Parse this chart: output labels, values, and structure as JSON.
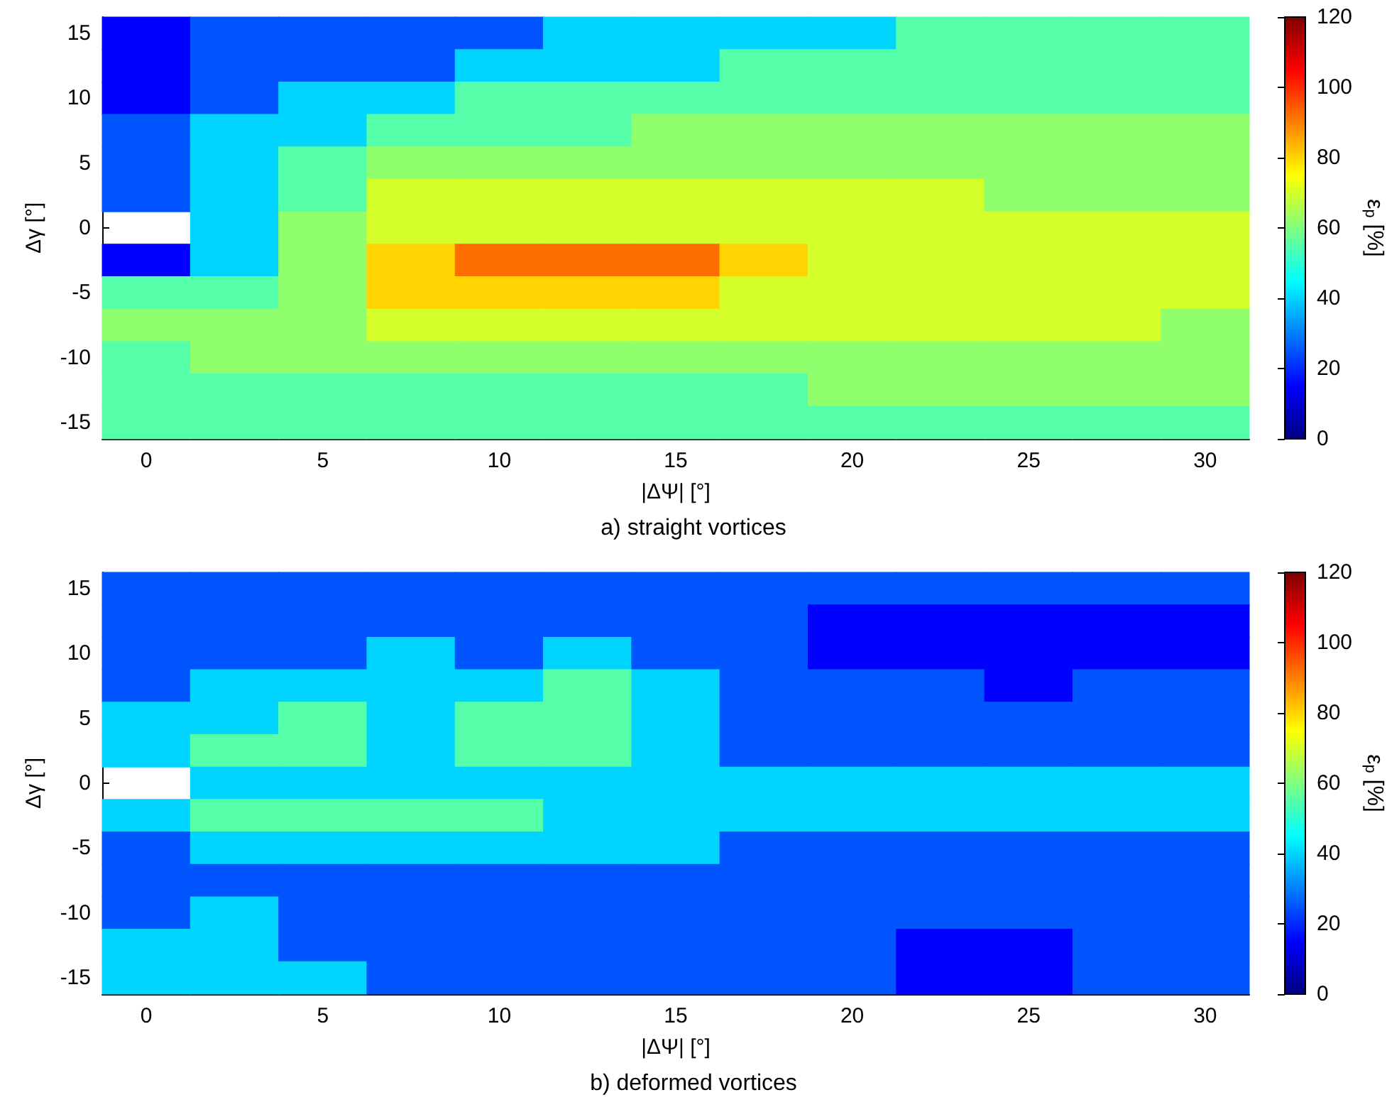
{
  "chart_data": [
    {
      "type": "heatmap",
      "xlabel": "|ΔΨ| [°]",
      "ylabel": "Δγ [°]",
      "clabel": "ε$_{p}$ [%]",
      "annotations": [
        "a) straight vortices"
      ],
      "clim": [
        0,
        120
      ],
      "cticks": [
        0,
        20,
        40,
        60,
        80,
        100,
        120
      ],
      "categories": [
        "0",
        null,
        "5",
        null,
        "10",
        null,
        "15",
        null,
        "20",
        null,
        "25",
        null,
        "30"
      ],
      "y_categories": [
        "15",
        null,
        "10",
        null,
        "5",
        null,
        "0",
        null,
        "-5",
        null,
        "-10",
        null,
        "-15"
      ],
      "cells": [
        [
          15,
          25,
          25,
          25,
          25,
          40,
          40,
          40,
          40,
          55,
          55,
          55,
          55
        ],
        [
          15,
          25,
          25,
          25,
          40,
          40,
          40,
          55,
          55,
          55,
          55,
          55,
          55
        ],
        [
          15,
          25,
          40,
          40,
          55,
          55,
          55,
          55,
          55,
          55,
          55,
          55,
          55
        ],
        [
          25,
          40,
          40,
          55,
          55,
          55,
          62,
          62,
          62,
          62,
          62,
          62,
          62
        ],
        [
          25,
          40,
          55,
          62,
          62,
          62,
          62,
          62,
          62,
          62,
          62,
          62,
          62
        ],
        [
          25,
          40,
          55,
          70,
          70,
          70,
          70,
          70,
          70,
          70,
          62,
          62,
          62
        ],
        [
          null,
          40,
          62,
          70,
          70,
          70,
          70,
          70,
          70,
          70,
          70,
          70,
          70
        ],
        [
          15,
          40,
          62,
          80,
          92,
          92,
          92,
          80,
          70,
          70,
          70,
          70,
          70
        ],
        [
          55,
          55,
          62,
          80,
          80,
          80,
          80,
          70,
          70,
          70,
          70,
          70,
          70
        ],
        [
          62,
          62,
          62,
          70,
          70,
          70,
          70,
          70,
          70,
          70,
          70,
          70,
          62
        ],
        [
          55,
          62,
          62,
          62,
          62,
          62,
          62,
          62,
          62,
          62,
          62,
          62,
          62
        ],
        [
          55,
          55,
          55,
          55,
          55,
          55,
          55,
          55,
          62,
          62,
          62,
          62,
          62
        ],
        [
          55,
          55,
          55,
          55,
          55,
          55,
          55,
          55,
          55,
          55,
          55,
          55,
          55
        ]
      ]
    },
    {
      "type": "heatmap",
      "xlabel": "|ΔΨ| [°]",
      "ylabel": "Δγ [°]",
      "clabel": "ε$_{p}$ [%]",
      "annotations": [
        "b) deformed vortices"
      ],
      "clim": [
        0,
        120
      ],
      "cticks": [
        0,
        20,
        40,
        60,
        80,
        100,
        120
      ],
      "categories": [
        "0",
        null,
        "5",
        null,
        "10",
        null,
        "15",
        null,
        "20",
        null,
        "25",
        null,
        "30"
      ],
      "y_categories": [
        "15",
        null,
        "10",
        null,
        "5",
        null,
        "0",
        null,
        "-5",
        null,
        "-10",
        null,
        "-15"
      ],
      "cells": [
        [
          25,
          25,
          25,
          25,
          25,
          25,
          25,
          25,
          25,
          25,
          25,
          25,
          25
        ],
        [
          25,
          25,
          25,
          25,
          25,
          25,
          25,
          25,
          15,
          15,
          15,
          15,
          15
        ],
        [
          25,
          25,
          25,
          40,
          25,
          40,
          25,
          25,
          15,
          15,
          15,
          15,
          15
        ],
        [
          25,
          40,
          40,
          40,
          40,
          55,
          40,
          25,
          25,
          25,
          15,
          25,
          25
        ],
        [
          40,
          40,
          55,
          40,
          55,
          55,
          40,
          25,
          25,
          25,
          25,
          25,
          25
        ],
        [
          40,
          55,
          55,
          40,
          55,
          55,
          40,
          25,
          25,
          25,
          25,
          25,
          25
        ],
        [
          null,
          40,
          40,
          40,
          40,
          40,
          40,
          40,
          40,
          40,
          40,
          40,
          40
        ],
        [
          40,
          55,
          55,
          55,
          55,
          40,
          40,
          40,
          40,
          40,
          40,
          40,
          40
        ],
        [
          25,
          40,
          40,
          40,
          40,
          40,
          40,
          25,
          25,
          25,
          25,
          25,
          25
        ],
        [
          25,
          25,
          25,
          25,
          25,
          25,
          25,
          25,
          25,
          25,
          25,
          25,
          25
        ],
        [
          25,
          40,
          25,
          25,
          25,
          25,
          25,
          25,
          25,
          25,
          25,
          25,
          25
        ],
        [
          40,
          40,
          25,
          25,
          25,
          25,
          25,
          25,
          25,
          15,
          15,
          25,
          25
        ],
        [
          40,
          40,
          40,
          25,
          25,
          25,
          25,
          25,
          25,
          15,
          15,
          25,
          25
        ]
      ]
    }
  ]
}
